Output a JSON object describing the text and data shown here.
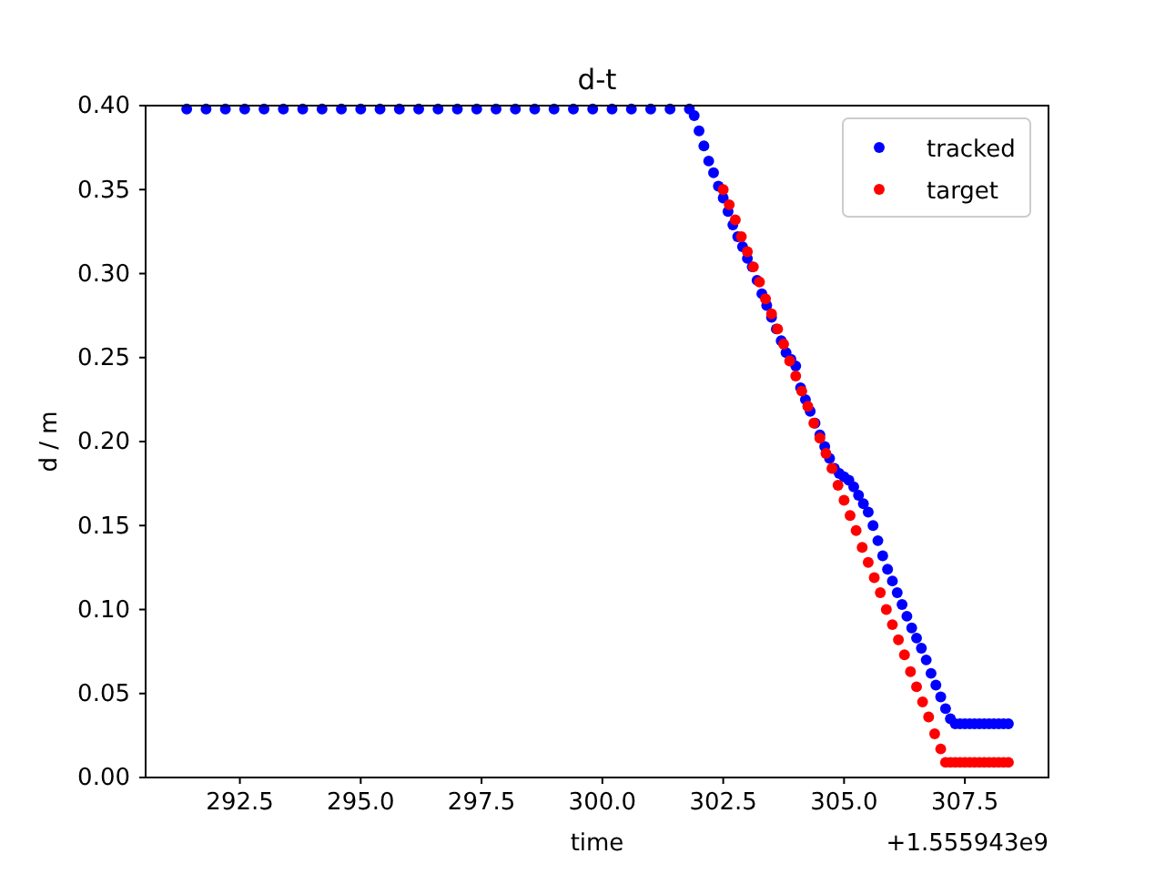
{
  "chart_data": {
    "type": "scatter",
    "title": "d-t",
    "xlabel": "time",
    "ylabel": "d / m",
    "annotations": [
      "+1.555943e9"
    ],
    "xlim": [
      290.55,
      309.23
    ],
    "xticks": [
      {
        "value": 292.5,
        "label": "292.5"
      },
      {
        "value": 295,
        "label": "295.0"
      },
      {
        "value": 297.5,
        "label": "297.5"
      },
      {
        "value": 300,
        "label": "300.0"
      },
      {
        "value": 302.5,
        "label": "302.5"
      },
      {
        "value": 305,
        "label": "305.0"
      },
      {
        "value": 307.5,
        "label": "307.5"
      }
    ],
    "ylim": [
      0,
      0.4
    ],
    "yticks": [
      {
        "value": 0,
        "label": "0.00"
      },
      {
        "value": 0.05,
        "label": "0.05"
      },
      {
        "value": 0.1,
        "label": "0.10"
      },
      {
        "value": 0.15,
        "label": "0.15"
      },
      {
        "value": 0.2,
        "label": "0.20"
      },
      {
        "value": 0.25,
        "label": "0.25"
      },
      {
        "value": 0.3,
        "label": "0.30"
      },
      {
        "value": 0.35,
        "label": "0.35"
      },
      {
        "value": 0.4,
        "label": "0.40"
      }
    ],
    "grid": false,
    "legend": "top right",
    "marker": "circle",
    "series": [
      {
        "name": "tracked",
        "color": "#0000ff",
        "x": [
          291.4,
          291.8,
          292.2,
          292.6,
          293.0,
          293.4,
          293.8,
          294.2,
          294.6,
          295.0,
          295.4,
          295.8,
          296.2,
          296.6,
          297.0,
          297.4,
          297.8,
          298.2,
          298.6,
          299.0,
          299.4,
          299.8,
          300.2,
          300.6,
          301.0,
          301.4,
          301.8,
          301.9,
          302.0,
          302.1,
          302.2,
          302.3,
          302.4,
          302.5,
          302.6,
          302.7,
          302.8,
          302.9,
          303.0,
          303.1,
          303.2,
          303.3,
          303.4,
          303.5,
          303.6,
          303.7,
          303.8,
          303.9,
          304.0,
          304.1,
          304.2,
          304.3,
          304.4,
          304.5,
          304.6,
          304.7,
          304.8,
          304.9,
          305.0,
          305.1,
          305.2,
          305.3,
          305.4,
          305.5,
          305.6,
          305.7,
          305.8,
          305.9,
          306.0,
          306.1,
          306.2,
          306.3,
          306.4,
          306.5,
          306.6,
          306.7,
          306.8,
          306.9,
          307.0,
          307.1,
          307.2,
          307.3,
          307.4,
          307.5,
          307.6,
          307.7,
          307.8,
          307.9,
          308.0,
          308.1,
          308.2,
          308.3,
          308.4
        ],
        "values": [
          0.398,
          0.398,
          0.398,
          0.398,
          0.398,
          0.398,
          0.398,
          0.398,
          0.398,
          0.398,
          0.398,
          0.398,
          0.398,
          0.398,
          0.398,
          0.398,
          0.398,
          0.398,
          0.398,
          0.398,
          0.398,
          0.398,
          0.398,
          0.398,
          0.398,
          0.398,
          0.398,
          0.394,
          0.385,
          0.376,
          0.367,
          0.36,
          0.352,
          0.345,
          0.337,
          0.329,
          0.322,
          0.316,
          0.309,
          0.304,
          0.296,
          0.288,
          0.281,
          0.274,
          0.267,
          0.26,
          0.253,
          0.249,
          0.245,
          0.232,
          0.225,
          0.218,
          0.211,
          0.204,
          0.197,
          0.19,
          0.184,
          0.181,
          0.179,
          0.177,
          0.173,
          0.168,
          0.163,
          0.158,
          0.15,
          0.141,
          0.132,
          0.124,
          0.117,
          0.11,
          0.103,
          0.096,
          0.089,
          0.083,
          0.077,
          0.07,
          0.062,
          0.055,
          0.048,
          0.041,
          0.035,
          0.032,
          0.032,
          0.032,
          0.032,
          0.032,
          0.032,
          0.032,
          0.032,
          0.032,
          0.032,
          0.032,
          0.032
        ]
      },
      {
        "name": "target",
        "color": "#ff0000",
        "x": [
          302.5,
          302.625,
          302.75,
          302.875,
          303.0,
          303.125,
          303.25,
          303.375,
          303.5,
          303.625,
          303.75,
          303.875,
          304.0,
          304.125,
          304.25,
          304.375,
          304.5,
          304.625,
          304.75,
          304.875,
          305.0,
          305.125,
          305.25,
          305.375,
          305.5,
          305.625,
          305.75,
          305.875,
          306.0,
          306.125,
          306.25,
          306.375,
          306.5,
          306.625,
          306.75,
          306.875,
          307.0,
          307.1,
          307.2,
          307.3,
          307.4,
          307.5,
          307.6,
          307.7,
          307.8,
          307.9,
          308.0,
          308.1,
          308.2,
          308.3,
          308.4
        ],
        "values": [
          0.35,
          0.341,
          0.332,
          0.322,
          0.313,
          0.304,
          0.295,
          0.285,
          0.276,
          0.267,
          0.258,
          0.248,
          0.239,
          0.23,
          0.221,
          0.211,
          0.202,
          0.193,
          0.184,
          0.174,
          0.165,
          0.156,
          0.147,
          0.137,
          0.128,
          0.119,
          0.11,
          0.1,
          0.091,
          0.082,
          0.073,
          0.063,
          0.054,
          0.045,
          0.036,
          0.026,
          0.017,
          0.009,
          0.009,
          0.009,
          0.009,
          0.009,
          0.009,
          0.009,
          0.009,
          0.009,
          0.009,
          0.009,
          0.009,
          0.009,
          0.009
        ]
      }
    ]
  }
}
